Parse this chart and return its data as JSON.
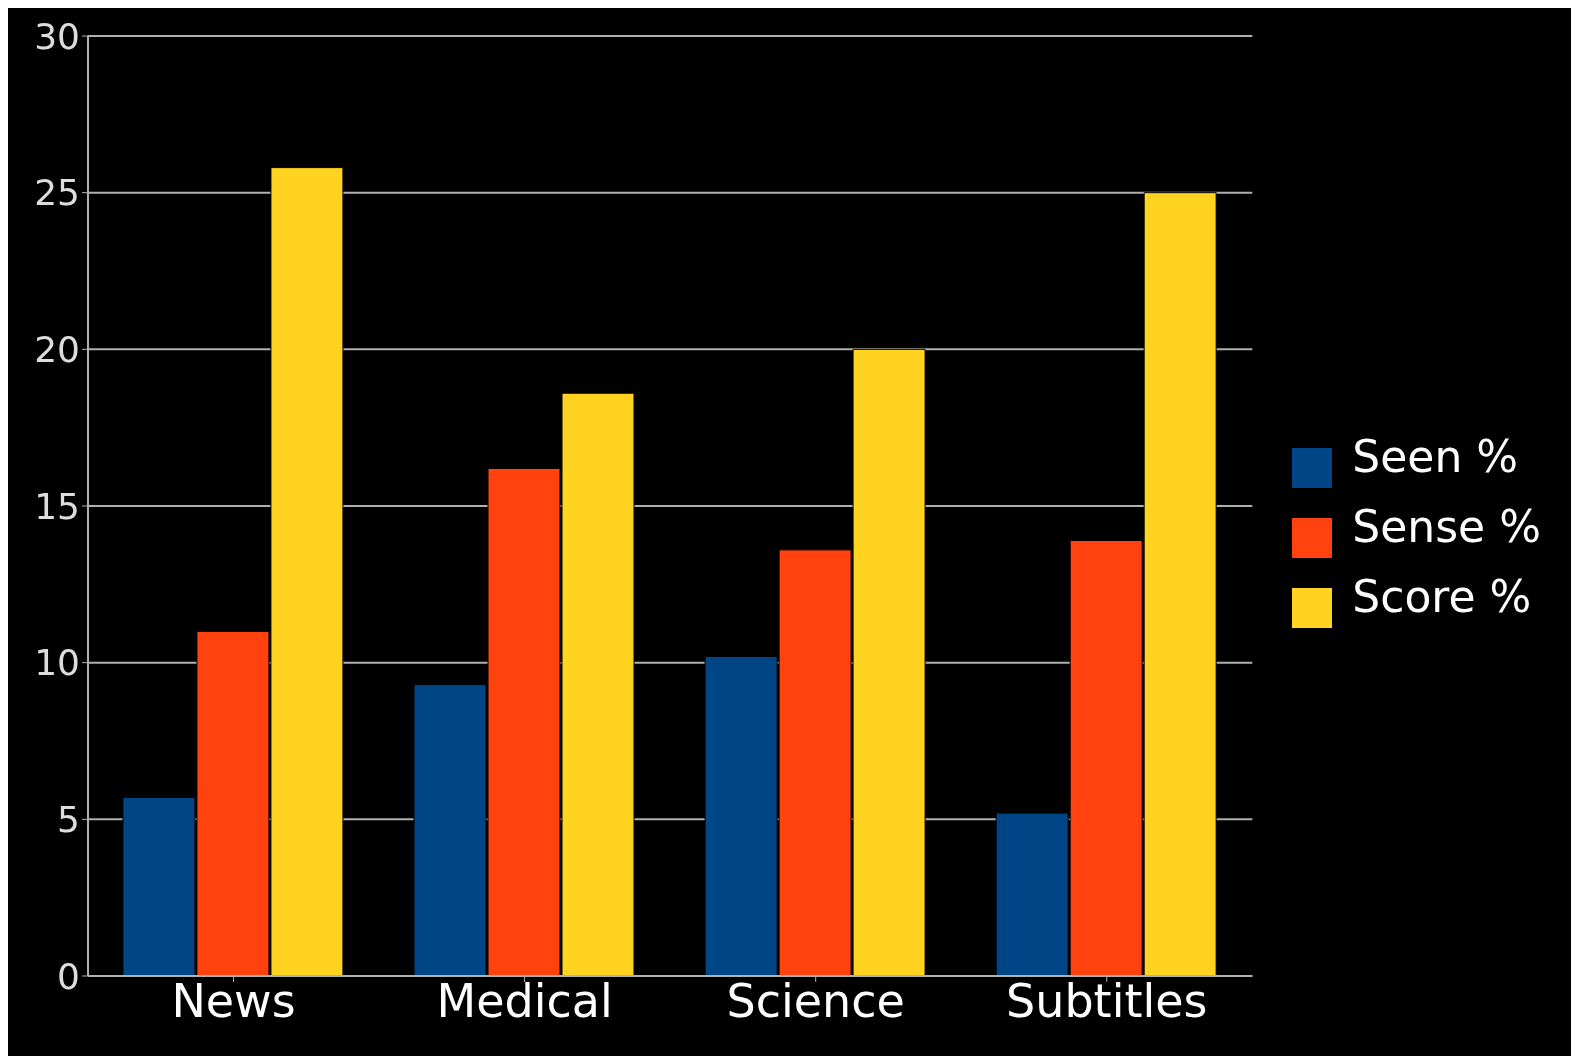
{
  "chart_data": {
    "type": "bar",
    "categories": [
      "News",
      "Medical",
      "Science",
      "Subtitles"
    ],
    "series": [
      {
        "name": "Seen %",
        "color": "#004586",
        "values": [
          5.7,
          9.3,
          10.2,
          5.2
        ]
      },
      {
        "name": "Sense %",
        "color": "#ff420e",
        "values": [
          11.0,
          16.2,
          13.6,
          13.9
        ]
      },
      {
        "name": "Score %",
        "color": "#ffd320",
        "values": [
          25.8,
          18.6,
          20.0,
          25.0
        ]
      }
    ],
    "ylim": [
      0,
      30
    ],
    "yticks": [
      0,
      5,
      10,
      15,
      20,
      25,
      30
    ],
    "grid": "y",
    "legend": "right"
  }
}
